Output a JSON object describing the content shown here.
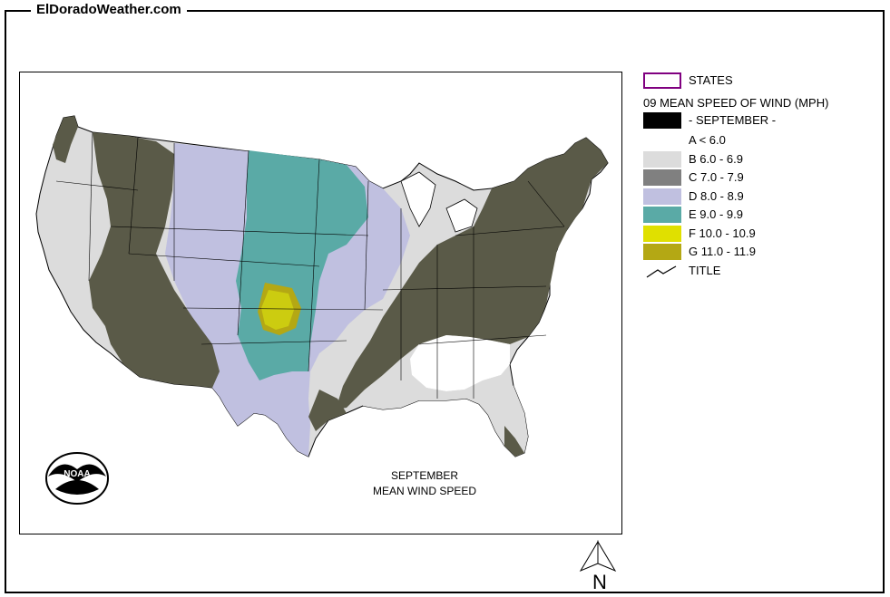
{
  "site_title": "ElDoradoWeather.com",
  "legend": {
    "states_label": "STATES",
    "heading": "09 MEAN SPEED OF WIND (MPH)",
    "month_label": "- SEPTEMBER -",
    "classes": [
      {
        "label": "A < 6.0",
        "color": "#ffffff"
      },
      {
        "label": "B 6.0 - 6.9",
        "color": "#dcdcdc"
      },
      {
        "label": "C 7.0 - 7.9",
        "color": "#808080"
      },
      {
        "label": "D 8.0 - 8.9",
        "color": "#c0c0e0"
      },
      {
        "label": "E 9.0 - 9.9",
        "color": "#5aaaa6"
      },
      {
        "label": "F 10.0 - 10.9",
        "color": "#e0e000"
      },
      {
        "label": "G 11.0 - 11.9",
        "color": "#b4a814"
      }
    ],
    "title_label": "TITLE"
  },
  "map_caption": {
    "line1": "SEPTEMBER",
    "line2": "MEAN WIND SPEED"
  },
  "logo_text": "NOAA",
  "north_label": "N",
  "colors": {
    "states_border": "#800080",
    "month_swatch": "#000000",
    "olive": "#5a5a48"
  }
}
